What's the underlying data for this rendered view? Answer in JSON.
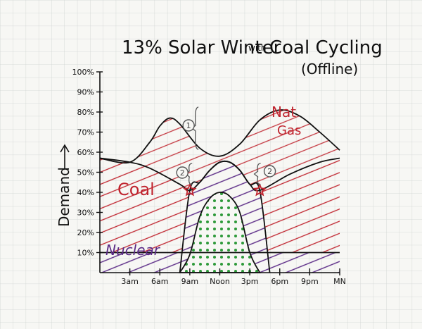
{
  "chart_data": {
    "type": "area",
    "title": "13% Solar Winter",
    "title_small": "with",
    "title_tail": "Coal Cycling",
    "subtitle": "(Offline)",
    "ylabel": "Demand",
    "yticks": [
      "10%",
      "20%",
      "30%",
      "40%",
      "50%",
      "60%",
      "70%",
      "80%",
      "90%",
      "100%"
    ],
    "ylim": [
      0,
      100
    ],
    "x_categories": [
      "3am",
      "6am",
      "9am",
      "Noon",
      "3pm",
      "6pm",
      "9pm",
      "MN"
    ],
    "x_hours": [
      3,
      6,
      9,
      12,
      15,
      18,
      21,
      24
    ],
    "grid": true,
    "series": [
      {
        "name": "Nuclear",
        "color": "#5b2a86",
        "points": [
          [
            0,
            10
          ],
          [
            24,
            10
          ]
        ]
      },
      {
        "name": "Coal",
        "color": "#c0242e",
        "points": [
          [
            0,
            57
          ],
          [
            3,
            55
          ],
          [
            5,
            52
          ],
          [
            8,
            44
          ],
          [
            9,
            41
          ],
          [
            10,
            45
          ],
          [
            11,
            51
          ],
          [
            12,
            55
          ],
          [
            13,
            55
          ],
          [
            14,
            51
          ],
          [
            15,
            44
          ],
          [
            16,
            41
          ],
          [
            19,
            49
          ],
          [
            22,
            55
          ],
          [
            24,
            57
          ]
        ]
      },
      {
        "name": "Solar",
        "color": "#2e9a3a",
        "points": [
          [
            8,
            0
          ],
          [
            9,
            9
          ],
          [
            10,
            28
          ],
          [
            11,
            37
          ],
          [
            12,
            40
          ],
          [
            13,
            38
          ],
          [
            14,
            30
          ],
          [
            15,
            10
          ],
          [
            16,
            0
          ]
        ]
      },
      {
        "name": "Nat Gas",
        "color": "#c0242e",
        "points": [
          [
            0,
            57
          ],
          [
            3,
            55
          ],
          [
            5,
            65
          ],
          [
            6,
            73
          ],
          [
            7,
            77
          ],
          [
            8,
            74
          ],
          [
            10,
            62
          ],
          [
            12,
            58
          ],
          [
            14,
            64
          ],
          [
            16,
            76
          ],
          [
            18,
            81
          ],
          [
            20,
            78
          ],
          [
            22,
            70
          ],
          [
            24,
            61
          ]
        ]
      }
    ],
    "annotations": [
      {
        "label": "1",
        "hour": 9.3
      },
      {
        "label": "2",
        "hour": 8.6
      },
      {
        "label": "2",
        "hour": 16.3
      }
    ],
    "markers": [
      {
        "type": "star",
        "hour": 9,
        "value": 41
      },
      {
        "type": "star",
        "hour": 16,
        "value": 41
      }
    ]
  },
  "labels": {
    "nuclear": "Nuclear",
    "coal": "Coal",
    "natgas_1": "Nat",
    "natgas_2": "Gas"
  }
}
